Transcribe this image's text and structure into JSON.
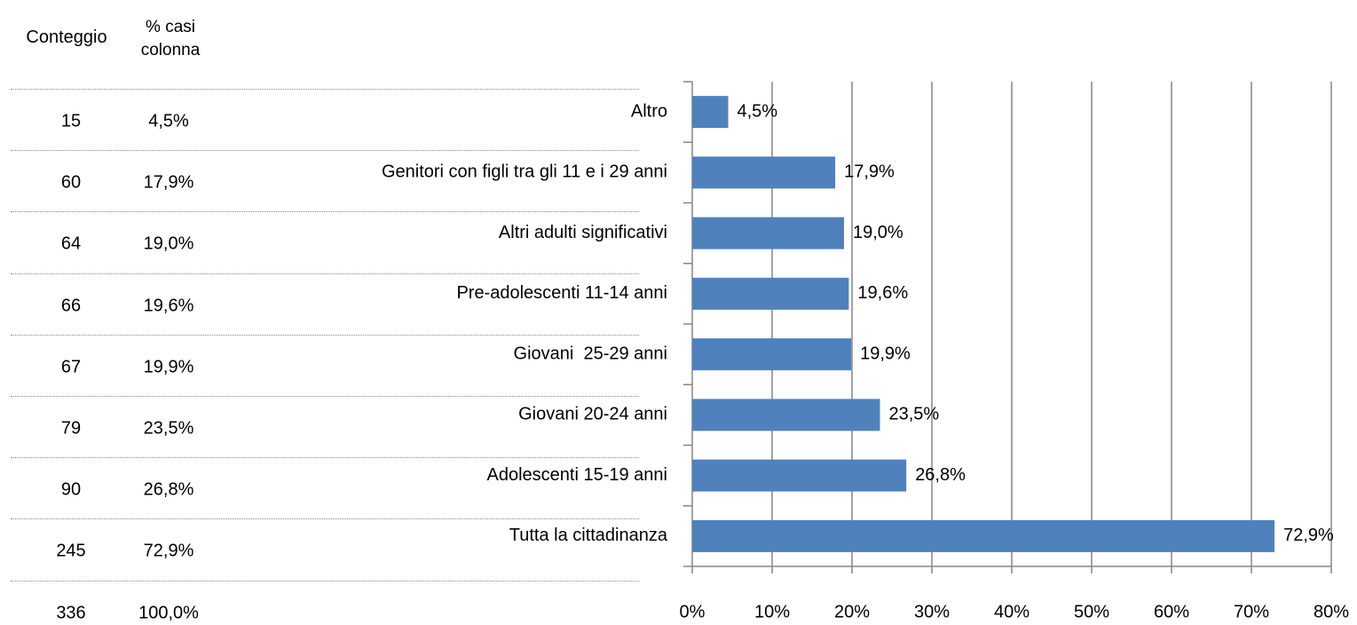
{
  "table": {
    "header": [
      "Conteggio",
      "% casi colonna"
    ],
    "rows": [
      [
        "15",
        "4,5%"
      ],
      [
        "60",
        "17,9%"
      ],
      [
        "64",
        "19,0%"
      ],
      [
        "66",
        "19,6%"
      ],
      [
        "67",
        "19,9%"
      ],
      [
        "79",
        "23,5%"
      ],
      [
        "90",
        "26,8%"
      ],
      [
        "245",
        "72,9%"
      ]
    ],
    "total": [
      "336",
      "100,0%"
    ]
  },
  "chart_data": {
    "type": "bar",
    "orientation": "horizontal",
    "categories": [
      "Altro",
      "Genitori con figli tra gli 11 e i 29 anni",
      "Altri adulti significativi",
      "Pre-adolescenti 11-14 anni",
      "Giovani  25-29 anni",
      "Giovani 20-24 anni",
      "Adolescenti 15-19 anni",
      "Tutta la cittadinanza"
    ],
    "values": [
      4.5,
      17.9,
      19.0,
      19.6,
      19.9,
      23.5,
      26.8,
      72.9
    ],
    "value_labels": [
      "4,5%",
      "17,9%",
      "19,0%",
      "19,6%",
      "19,9%",
      "23,5%",
      "26,8%",
      "72,9%"
    ],
    "color": "#4f81bd",
    "xlim": [
      0,
      80
    ],
    "xticks": [
      {
        "value": 0,
        "label": "0%"
      },
      {
        "value": 10,
        "label": "10%"
      },
      {
        "value": 20,
        "label": "20%"
      },
      {
        "value": 30,
        "label": "30%"
      },
      {
        "value": 40,
        "label": "40%"
      },
      {
        "value": 50,
        "label": "50%"
      },
      {
        "value": 60,
        "label": "60%"
      },
      {
        "value": 70,
        "label": "70%"
      },
      {
        "value": 80,
        "label": "80%"
      }
    ],
    "grid": true
  }
}
